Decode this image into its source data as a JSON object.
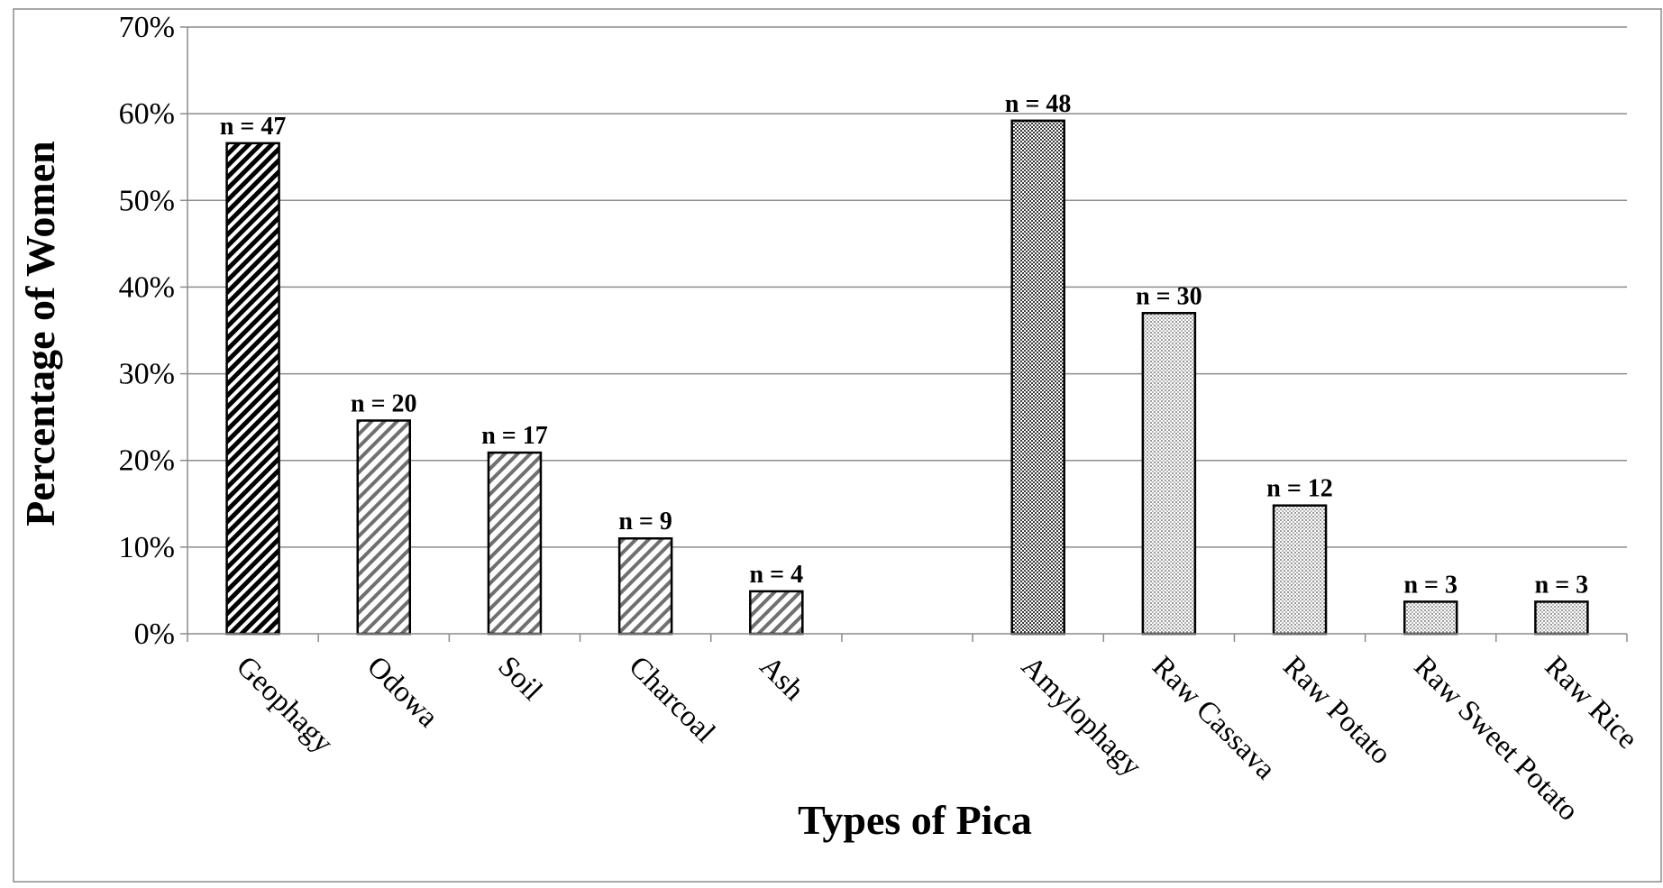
{
  "chart_data": {
    "type": "bar",
    "xlabel": "Types of Pica",
    "ylabel": "Percentage of Women",
    "ylim": [
      0,
      70
    ],
    "y_ticks": [
      "0%",
      "10%",
      "20%",
      "30%",
      "40%",
      "50%",
      "60%",
      "70%"
    ],
    "grid": "horizontal",
    "legend": "none",
    "categories": [
      "Geophagy",
      "Odowa",
      "Soil",
      "Charcoal",
      "Ash",
      "",
      "Amylophagy",
      "Raw Cassava",
      "Raw Potato",
      "Raw Sweet Potato",
      "Raw Rice"
    ],
    "values": [
      56.6,
      24.6,
      20.9,
      11.0,
      4.9,
      null,
      59.2,
      37.0,
      14.8,
      3.7,
      3.7
    ],
    "data_labels": [
      "n = 47",
      "n = 20",
      "n = 17",
      "n = 9",
      "n = 4",
      "",
      "n = 48",
      "n = 30",
      "n = 12",
      "n = 3",
      "n = 3"
    ],
    "fills": [
      "hatch-dark",
      "hatch-light",
      "hatch-light",
      "hatch-light",
      "hatch-light",
      "",
      "dots-dark",
      "dots-light",
      "dots-light",
      "dots-light",
      "dots-light"
    ],
    "colors": {
      "hatch_dark": "#000000",
      "hatch_light": "#707070",
      "dots_dark": "#3a3a3a",
      "dots_light": "#9a9a9a",
      "grid": "#8c8c8c",
      "bar_border": "#000000"
    }
  }
}
